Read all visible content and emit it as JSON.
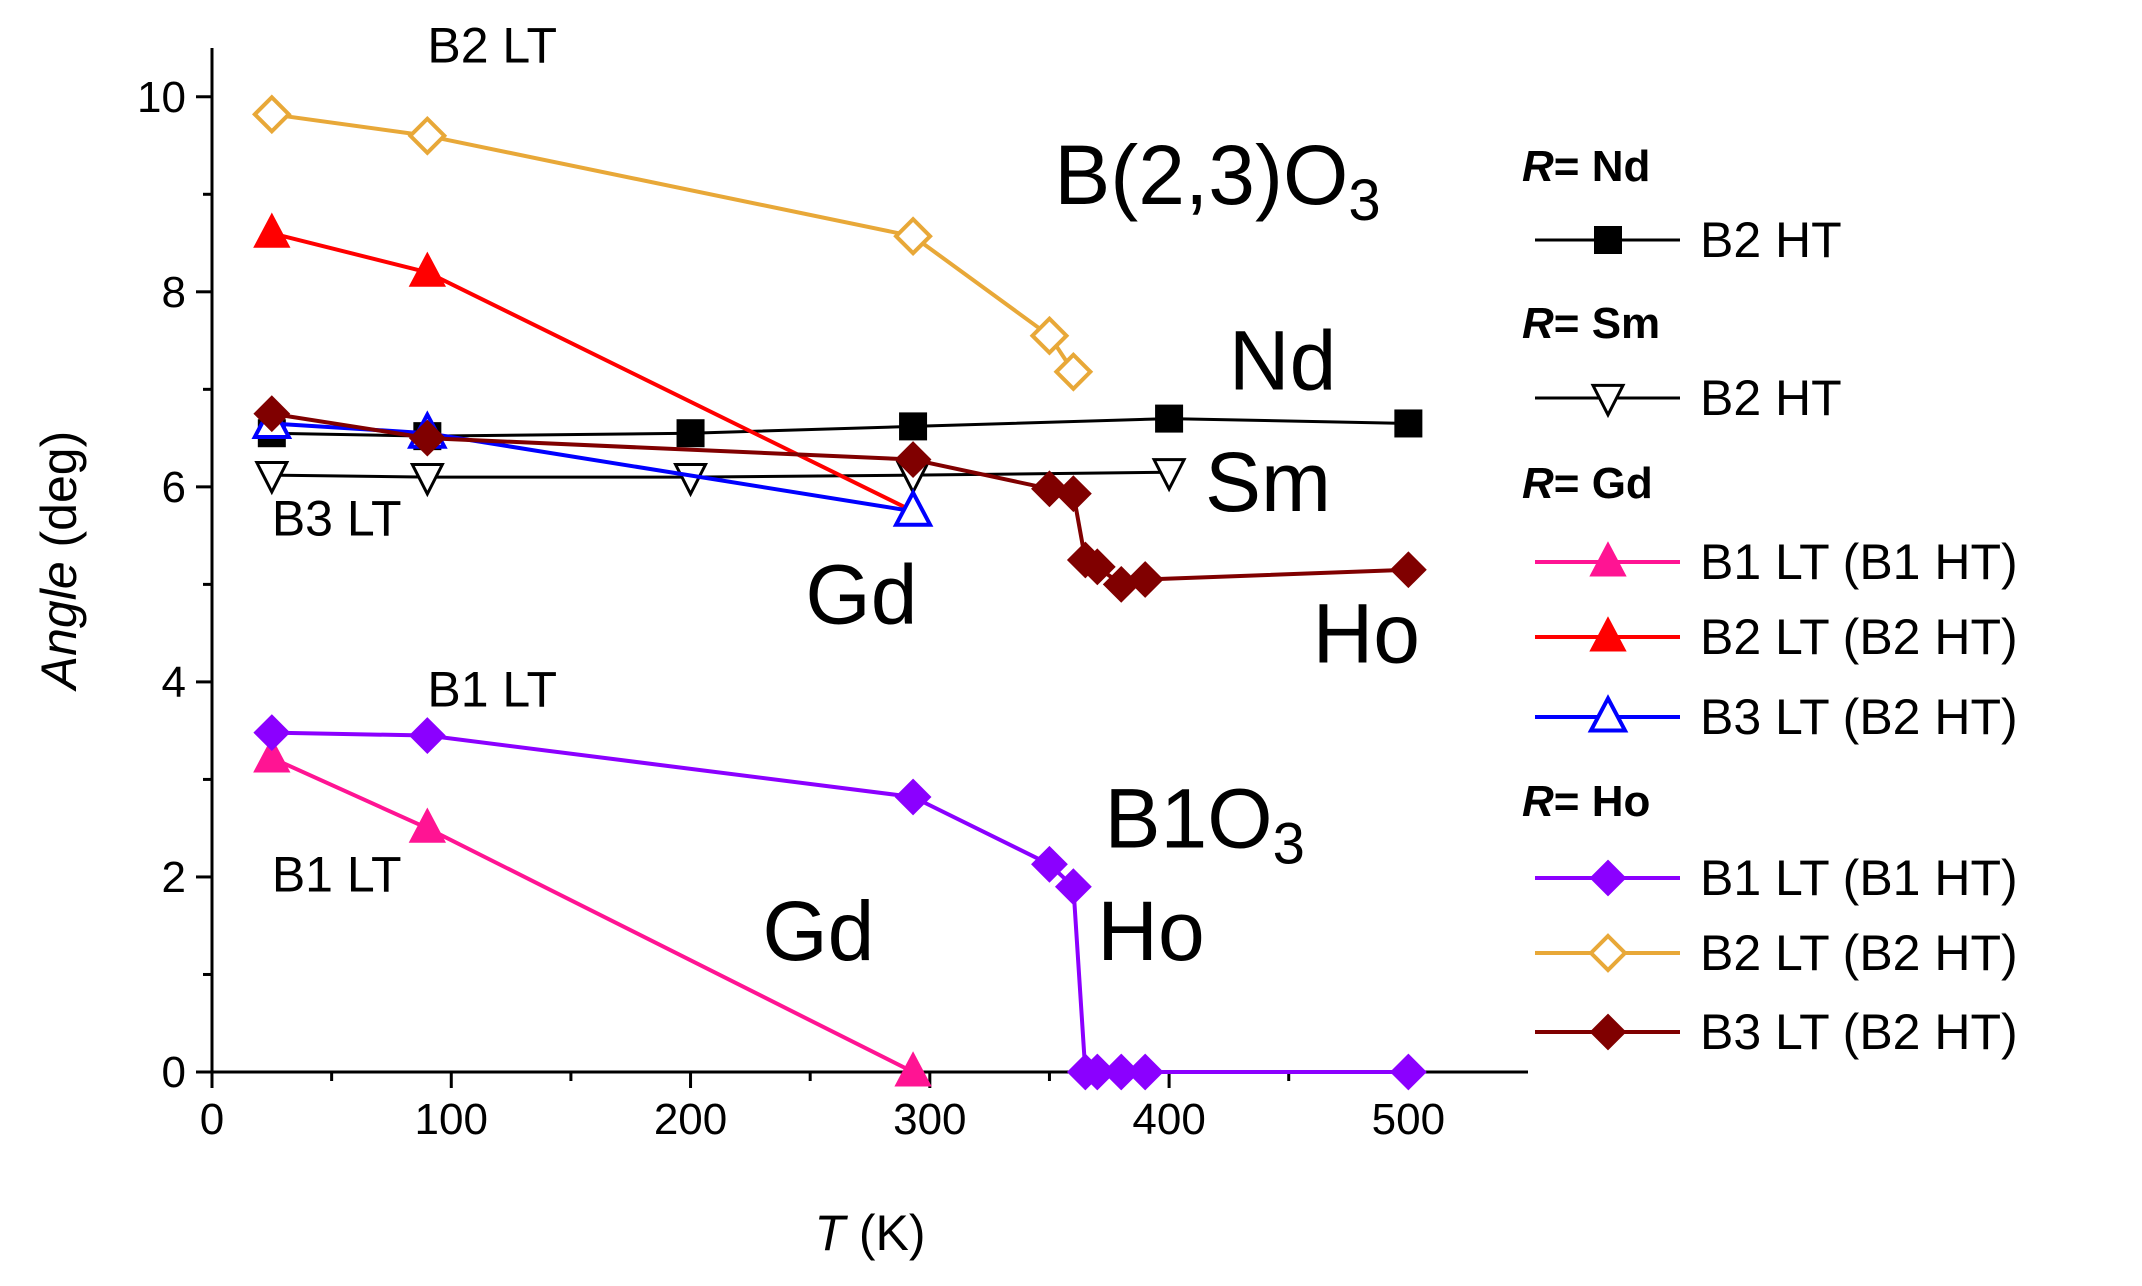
{
  "chart_data": {
    "type": "line",
    "xlabel": {
      "italic": "T",
      "rest": " (K)"
    },
    "ylabel": {
      "italic": "Angle",
      "rest": " (deg)"
    },
    "xlim": [
      0,
      550
    ],
    "ylim": [
      0,
      10.5
    ],
    "xticks": [
      0,
      100,
      200,
      300,
      400,
      500
    ],
    "xtick_labels": [
      "0",
      "100",
      "200",
      "300",
      "400",
      "500"
    ],
    "yticks": [
      0,
      2,
      4,
      6,
      8,
      10
    ],
    "ytick_labels": [
      "0",
      "2",
      "4",
      "6",
      "8",
      "10"
    ],
    "grid": false,
    "legend_position": "right",
    "series": [
      {
        "id": "nd-b2ht",
        "name": "B2 HT",
        "group": "Nd",
        "color": "#000000",
        "marker": "square",
        "filled": true,
        "line_width": 3,
        "x": [
          25,
          90,
          200,
          293,
          400,
          500
        ],
        "y": [
          6.55,
          6.52,
          6.55,
          6.62,
          6.7,
          6.65
        ]
      },
      {
        "id": "sm-b2ht",
        "name": "B2 HT",
        "group": "Sm",
        "color": "#000000",
        "marker": "triangle-down",
        "filled": false,
        "line_width": 3,
        "x": [
          25,
          90,
          200,
          293,
          400
        ],
        "y": [
          6.12,
          6.1,
          6.1,
          6.12,
          6.15
        ]
      },
      {
        "id": "gd-b1lt",
        "name": "B1 LT (B1 HT)",
        "group": "Gd",
        "color": "#ff1493",
        "marker": "triangle-up",
        "filled": true,
        "line_width": 4,
        "x": [
          25,
          90,
          293
        ],
        "y": [
          3.22,
          2.5,
          0.0
        ]
      },
      {
        "id": "gd-b2lt",
        "name": "B2 LT (B2 HT)",
        "group": "Gd",
        "color": "#ff0000",
        "marker": "triangle-up",
        "filled": true,
        "line_width": 4,
        "x": [
          25,
          90,
          293
        ],
        "y": [
          8.6,
          8.2,
          5.75
        ]
      },
      {
        "id": "gd-b3lt",
        "name": "B3 LT (B2 HT)",
        "group": "Gd",
        "color": "#0000ff",
        "marker": "triangle-up",
        "filled": false,
        "line_width": 4,
        "x": [
          25,
          90,
          293
        ],
        "y": [
          6.65,
          6.55,
          5.75
        ]
      },
      {
        "id": "ho-b1lt",
        "name": "B1 LT (B1 HT)",
        "group": "Ho",
        "color": "#8b00ff",
        "marker": "diamond",
        "filled": true,
        "line_width": 4,
        "x": [
          25,
          90,
          293,
          350,
          360,
          365,
          370,
          380,
          390,
          500
        ],
        "y": [
          3.48,
          3.45,
          2.82,
          2.13,
          1.9,
          0.0,
          0.0,
          0.0,
          0.0,
          0.0
        ]
      },
      {
        "id": "ho-b2lt",
        "name": "B2 LT (B2 HT)",
        "group": "Ho",
        "color": "#e8a838",
        "marker": "diamond",
        "filled": false,
        "line_width": 4,
        "x": [
          25,
          90,
          293,
          350,
          360
        ],
        "y": [
          9.82,
          9.6,
          8.57,
          7.55,
          7.18
        ]
      },
      {
        "id": "ho-b3lt",
        "name": "B3 LT (B2 HT)",
        "group": "Ho",
        "color": "#800000",
        "marker": "diamond",
        "filled": true,
        "line_width": 4,
        "x": [
          25,
          90,
          293,
          350,
          360,
          365,
          370,
          380,
          390,
          500
        ],
        "y": [
          6.75,
          6.5,
          6.28,
          5.98,
          5.93,
          5.25,
          5.18,
          5.0,
          5.05,
          5.15
        ]
      }
    ],
    "annotations": [
      {
        "id": "b2lt-top",
        "text": "B2 LT",
        "style": "small",
        "x": 90,
        "y": 10.35
      },
      {
        "id": "b3lt",
        "text": "B3 LT",
        "style": "small",
        "x": 25,
        "y": 5.5
      },
      {
        "id": "b1lt-upper",
        "text": "B1 LT",
        "style": "small",
        "x": 90,
        "y": 3.75
      },
      {
        "id": "b1lt-lower",
        "text": "B1 LT",
        "style": "small",
        "x": 25,
        "y": 1.85
      },
      {
        "id": "nd",
        "text": "Nd",
        "style": "big",
        "x": 425,
        "y": 7.0
      },
      {
        "id": "sm",
        "text": "Sm",
        "style": "big",
        "x": 415,
        "y": 5.75
      },
      {
        "id": "gd-upper",
        "text": "Gd",
        "style": "big",
        "x": 248,
        "y": 4.6
      },
      {
        "id": "ho-upper",
        "text": "Ho",
        "style": "big",
        "x": 460,
        "y": 4.2
      },
      {
        "id": "gd-lower",
        "text": "Gd",
        "style": "big",
        "x": 230,
        "y": 1.15
      },
      {
        "id": "ho-lower",
        "text": "Ho",
        "style": "big",
        "x": 370,
        "y": 1.15
      }
    ],
    "compound_labels": [
      {
        "id": "b23o3",
        "main": "B(2,3)O",
        "sub": "3",
        "x": 352,
        "y": 8.9
      },
      {
        "id": "b1o3",
        "main": "B1O",
        "sub": "3",
        "x": 373,
        "y": 2.3
      }
    ],
    "legend": [
      {
        "kind": "header",
        "italic": "R",
        "text": "= Nd"
      },
      {
        "kind": "item",
        "series": "nd-b2ht"
      },
      {
        "kind": "header",
        "italic": "R",
        "text": "= Sm"
      },
      {
        "kind": "item",
        "series": "sm-b2ht"
      },
      {
        "kind": "header",
        "italic": "R",
        "text": "= Gd"
      },
      {
        "kind": "item",
        "series": "gd-b1lt"
      },
      {
        "kind": "item",
        "series": "gd-b2lt"
      },
      {
        "kind": "item",
        "series": "gd-b3lt"
      },
      {
        "kind": "header",
        "italic": "R",
        "text": "= Ho"
      },
      {
        "kind": "item",
        "series": "ho-b1lt"
      },
      {
        "kind": "item",
        "series": "ho-b2lt"
      },
      {
        "kind": "item",
        "series": "ho-b3lt"
      }
    ]
  }
}
